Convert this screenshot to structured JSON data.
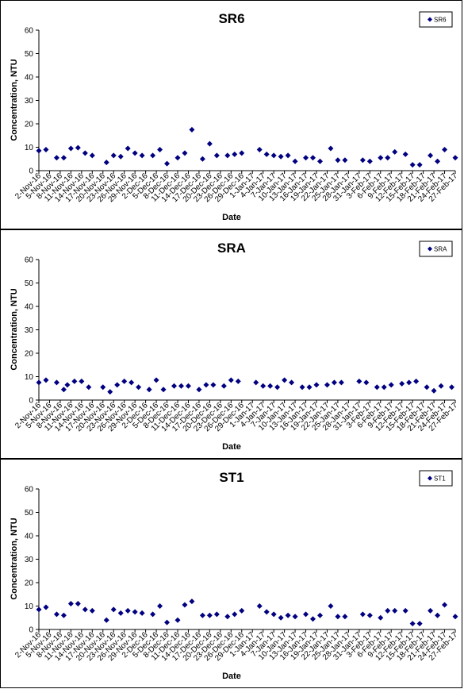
{
  "chart_data": [
    {
      "type": "scatter",
      "title": "SR6",
      "xlabel": "Date",
      "ylabel": "Concentration, NTU",
      "ylim": [
        0,
        60
      ],
      "yticks": [
        0,
        10,
        20,
        30,
        40,
        50,
        60
      ],
      "x_tick_labels": [
        "2-Nov-16",
        "5-Nov-16",
        "8-Nov-16",
        "11-Nov-16",
        "14-Nov-16",
        "17-Nov-16",
        "20-Nov-16",
        "23-Nov-16",
        "26-Nov-16",
        "29-Nov-16",
        "2-Dec-16",
        "5-Dec-16",
        "8-Dec-16",
        "11-Dec-16",
        "14-Dec-16",
        "17-Dec-16",
        "20-Dec-16",
        "23-Dec-16",
        "26-Dec-16",
        "29-Dec-16",
        "1-Jan-17",
        "4-Jan-17",
        "7-Jan-17",
        "10-Jan-17",
        "13-Jan-17",
        "16-Jan-17",
        "19-Jan-17",
        "22-Jan-17",
        "25-Jan-17",
        "28-Jan-17",
        "31-Jan-17",
        "3-Feb-17",
        "6-Feb-17",
        "9-Feb-17",
        "12-Feb-17",
        "15-Feb-17",
        "18-Feb-17",
        "21-Feb-17",
        "24-Feb-17",
        "27-Feb-17"
      ],
      "legend": {
        "position": "top-right",
        "entries": [
          "SR6"
        ]
      },
      "grid": false,
      "marker_color": "#000080",
      "series": [
        {
          "name": "SR6",
          "points": [
            [
              "2-Nov-16",
              8.5
            ],
            [
              "4-Nov-16",
              9.0
            ],
            [
              "7-Nov-16",
              5.5
            ],
            [
              "9-Nov-16",
              5.5
            ],
            [
              "11-Nov-16",
              9.5
            ],
            [
              "13-Nov-16",
              9.8
            ],
            [
              "15-Nov-16",
              7.5
            ],
            [
              "17-Nov-16",
              6.5
            ],
            [
              "21-Nov-16",
              3.5
            ],
            [
              "23-Nov-16",
              6.5
            ],
            [
              "25-Nov-16",
              6.0
            ],
            [
              "27-Nov-16",
              9.5
            ],
            [
              "29-Nov-16",
              7.5
            ],
            [
              "1-Dec-16",
              6.5
            ],
            [
              "4-Dec-16",
              6.5
            ],
            [
              "6-Dec-16",
              9.0
            ],
            [
              "8-Dec-16",
              3.0
            ],
            [
              "11-Dec-16",
              5.5
            ],
            [
              "13-Dec-16",
              7.5
            ],
            [
              "15-Dec-16",
              17.5
            ],
            [
              "18-Dec-16",
              5.0
            ],
            [
              "20-Dec-16",
              11.5
            ],
            [
              "22-Dec-16",
              6.5
            ],
            [
              "25-Dec-16",
              6.5
            ],
            [
              "27-Dec-16",
              7.0
            ],
            [
              "29-Dec-16",
              7.5
            ],
            [
              "3-Jan-17",
              9.0
            ],
            [
              "5-Jan-17",
              7.0
            ],
            [
              "7-Jan-17",
              6.5
            ],
            [
              "9-Jan-17",
              6.0
            ],
            [
              "11-Jan-17",
              6.5
            ],
            [
              "13-Jan-17",
              4.0
            ],
            [
              "16-Jan-17",
              5.5
            ],
            [
              "18-Jan-17",
              5.5
            ],
            [
              "20-Jan-17",
              4.0
            ],
            [
              "23-Jan-17",
              9.5
            ],
            [
              "25-Jan-17",
              4.5
            ],
            [
              "27-Jan-17",
              4.5
            ],
            [
              "1-Feb-17",
              4.5
            ],
            [
              "3-Feb-17",
              4.0
            ],
            [
              "6-Feb-17",
              5.5
            ],
            [
              "8-Feb-17",
              5.5
            ],
            [
              "10-Feb-17",
              8.0
            ],
            [
              "13-Feb-17",
              7.0
            ],
            [
              "15-Feb-17",
              2.5
            ],
            [
              "17-Feb-17",
              2.5
            ],
            [
              "20-Feb-17",
              6.5
            ],
            [
              "22-Feb-17",
              4.0
            ],
            [
              "24-Feb-17",
              9.0
            ],
            [
              "27-Feb-17",
              5.5
            ]
          ]
        }
      ]
    },
    {
      "type": "scatter",
      "title": "SRA",
      "xlabel": "Date",
      "ylabel": "Concentration, NTU",
      "ylim": [
        0,
        60
      ],
      "yticks": [
        0,
        10,
        20,
        30,
        40,
        50,
        60
      ],
      "x_tick_labels": [
        "2-Nov-16",
        "5-Nov-16",
        "8-Nov-16",
        "11-Nov-16",
        "14-Nov-16",
        "17-Nov-16",
        "20-Nov-16",
        "23-Nov-16",
        "26-Nov-16",
        "29-Nov-16",
        "2-Dec-16",
        "5-Dec-16",
        "8-Dec-16",
        "11-Dec-16",
        "14-Dec-16",
        "17-Dec-16",
        "20-Dec-16",
        "23-Dec-16",
        "26-Dec-16",
        "29-Dec-16",
        "1-Jan-17",
        "4-Jan-17",
        "7-Jan-17",
        "10-Jan-17",
        "13-Jan-17",
        "16-Jan-17",
        "19-Jan-17",
        "22-Jan-17",
        "25-Jan-17",
        "28-Jan-17",
        "31-Jan-17",
        "3-Feb-17",
        "6-Feb-17",
        "9-Feb-17",
        "12-Feb-17",
        "15-Feb-17",
        "18-Feb-17",
        "21-Feb-17",
        "24-Feb-17",
        "27-Feb-17"
      ],
      "legend": {
        "position": "top-right",
        "entries": [
          "SRA"
        ]
      },
      "grid": false,
      "marker_color": "#000080",
      "series": [
        {
          "name": "SRA",
          "points": [
            [
              "2-Nov-16",
              7.5
            ],
            [
              "4-Nov-16",
              8.5
            ],
            [
              "7-Nov-16",
              7.5
            ],
            [
              "9-Nov-16",
              4.5
            ],
            [
              "10-Nov-16",
              6.5
            ],
            [
              "12-Nov-16",
              8.0
            ],
            [
              "14-Nov-16",
              8.0
            ],
            [
              "16-Nov-16",
              5.5
            ],
            [
              "20-Nov-16",
              5.5
            ],
            [
              "22-Nov-16",
              3.5
            ],
            [
              "24-Nov-16",
              6.5
            ],
            [
              "26-Nov-16",
              8.0
            ],
            [
              "28-Nov-16",
              7.5
            ],
            [
              "30-Nov-16",
              5.5
            ],
            [
              "3-Dec-16",
              4.5
            ],
            [
              "5-Dec-16",
              8.5
            ],
            [
              "7-Dec-16",
              4.5
            ],
            [
              "10-Dec-16",
              6.0
            ],
            [
              "12-Dec-16",
              6.0
            ],
            [
              "14-Dec-16",
              6.0
            ],
            [
              "17-Dec-16",
              4.5
            ],
            [
              "19-Dec-16",
              6.5
            ],
            [
              "21-Dec-16",
              6.5
            ],
            [
              "24-Dec-16",
              6.0
            ],
            [
              "26-Dec-16",
              8.5
            ],
            [
              "28-Dec-16",
              8.0
            ],
            [
              "2-Jan-17",
              7.5
            ],
            [
              "4-Jan-17",
              6.0
            ],
            [
              "6-Jan-17",
              6.0
            ],
            [
              "8-Jan-17",
              5.5
            ],
            [
              "10-Jan-17",
              8.5
            ],
            [
              "12-Jan-17",
              7.5
            ],
            [
              "15-Jan-17",
              5.5
            ],
            [
              "17-Jan-17",
              5.5
            ],
            [
              "19-Jan-17",
              6.5
            ],
            [
              "22-Jan-17",
              6.5
            ],
            [
              "24-Jan-17",
              7.5
            ],
            [
              "26-Jan-17",
              7.5
            ],
            [
              "31-Jan-17",
              8.0
            ],
            [
              "2-Feb-17",
              7.5
            ],
            [
              "5-Feb-17",
              5.5
            ],
            [
              "7-Feb-17",
              5.5
            ],
            [
              "9-Feb-17",
              6.5
            ],
            [
              "12-Feb-17",
              7.0
            ],
            [
              "14-Feb-17",
              7.5
            ],
            [
              "16-Feb-17",
              8.0
            ],
            [
              "19-Feb-17",
              5.5
            ],
            [
              "21-Feb-17",
              4.0
            ],
            [
              "23-Feb-17",
              6.0
            ],
            [
              "26-Feb-17",
              5.5
            ]
          ]
        }
      ]
    },
    {
      "type": "scatter",
      "title": "ST1",
      "xlabel": "Date",
      "ylabel": "Concentration, NTU",
      "ylim": [
        0,
        60
      ],
      "yticks": [
        0,
        10,
        20,
        30,
        40,
        50,
        60
      ],
      "x_tick_labels": [
        "2-Nov-16",
        "5-Nov-16",
        "8-Nov-16",
        "11-Nov-16",
        "14-Nov-16",
        "17-Nov-16",
        "20-Nov-16",
        "23-Nov-16",
        "26-Nov-16",
        "29-Nov-16",
        "2-Dec-16",
        "5-Dec-16",
        "8-Dec-16",
        "11-Dec-16",
        "14-Dec-16",
        "17-Dec-16",
        "20-Dec-16",
        "23-Dec-16",
        "26-Dec-16",
        "29-Dec-16",
        "1-Jan-17",
        "4-Jan-17",
        "7-Jan-17",
        "10-Jan-17",
        "13-Jan-17",
        "16-Jan-17",
        "19-Jan-17",
        "22-Jan-17",
        "25-Jan-17",
        "28-Jan-17",
        "31-Jan-17",
        "3-Feb-17",
        "6-Feb-17",
        "9-Feb-17",
        "12-Feb-17",
        "15-Feb-17",
        "18-Feb-17",
        "21-Feb-17",
        "24-Feb-17",
        "27-Feb-17"
      ],
      "legend": {
        "position": "top-right",
        "entries": [
          "ST1"
        ]
      },
      "grid": false,
      "marker_color": "#000080",
      "series": [
        {
          "name": "ST1",
          "points": [
            [
              "2-Nov-16",
              8.5
            ],
            [
              "4-Nov-16",
              9.5
            ],
            [
              "7-Nov-16",
              6.5
            ],
            [
              "9-Nov-16",
              6.0
            ],
            [
              "11-Nov-16",
              11.0
            ],
            [
              "13-Nov-16",
              11.0
            ],
            [
              "15-Nov-16",
              8.5
            ],
            [
              "17-Nov-16",
              8.0
            ],
            [
              "21-Nov-16",
              4.0
            ],
            [
              "23-Nov-16",
              8.5
            ],
            [
              "25-Nov-16",
              7.0
            ],
            [
              "27-Nov-16",
              8.0
            ],
            [
              "29-Nov-16",
              7.5
            ],
            [
              "1-Dec-16",
              7.0
            ],
            [
              "4-Dec-16",
              6.5
            ],
            [
              "6-Dec-16",
              10.0
            ],
            [
              "8-Dec-16",
              3.0
            ],
            [
              "11-Dec-16",
              4.0
            ],
            [
              "13-Dec-16",
              10.5
            ],
            [
              "15-Dec-16",
              12.0
            ],
            [
              "18-Dec-16",
              6.0
            ],
            [
              "20-Dec-16",
              6.0
            ],
            [
              "22-Dec-16",
              6.5
            ],
            [
              "25-Dec-16",
              5.5
            ],
            [
              "27-Dec-16",
              6.5
            ],
            [
              "29-Dec-16",
              8.0
            ],
            [
              "3-Jan-17",
              10.0
            ],
            [
              "5-Jan-17",
              7.5
            ],
            [
              "7-Jan-17",
              6.5
            ],
            [
              "9-Jan-17",
              5.0
            ],
            [
              "11-Jan-17",
              6.0
            ],
            [
              "13-Jan-17",
              5.5
            ],
            [
              "16-Jan-17",
              6.5
            ],
            [
              "18-Jan-17",
              4.5
            ],
            [
              "20-Jan-17",
              6.0
            ],
            [
              "23-Jan-17",
              10.0
            ],
            [
              "25-Jan-17",
              5.5
            ],
            [
              "27-Jan-17",
              5.5
            ],
            [
              "1-Feb-17",
              6.5
            ],
            [
              "3-Feb-17",
              6.0
            ],
            [
              "6-Feb-17",
              5.0
            ],
            [
              "8-Feb-17",
              8.0
            ],
            [
              "10-Feb-17",
              8.0
            ],
            [
              "13-Feb-17",
              8.0
            ],
            [
              "15-Feb-17",
              2.5
            ],
            [
              "17-Feb-17",
              2.5
            ],
            [
              "20-Feb-17",
              8.0
            ],
            [
              "22-Feb-17",
              6.0
            ],
            [
              "24-Feb-17",
              10.5
            ],
            [
              "27-Feb-17",
              5.5
            ]
          ]
        }
      ]
    }
  ]
}
